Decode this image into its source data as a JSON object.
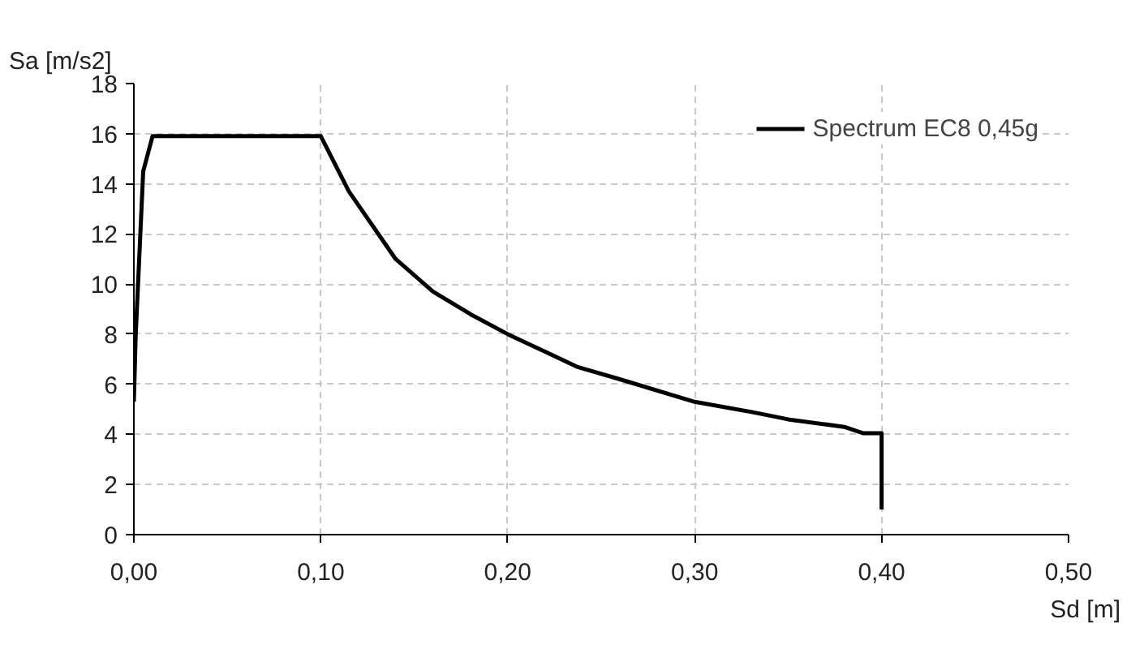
{
  "chart_data": {
    "type": "line",
    "xlabel": "Sd [m]",
    "ylabel": "Sa [m/s2]",
    "x": [
      0,
      0.001,
      0.005,
      0.01,
      0.1,
      0.115,
      0.14,
      0.16,
      0.18,
      0.2,
      0.22,
      0.237,
      0.26,
      0.3,
      0.33,
      0.35,
      0.38,
      0.39,
      0.4,
      0.4
    ],
    "series": [
      {
        "name": "Spectrum EC8 0,45g",
        "color": "#000000",
        "values": [
          5.3,
          8.0,
          14.5,
          15.9,
          15.9,
          13.7,
          11.0,
          9.7,
          8.8,
          8.0,
          7.3,
          6.7,
          6.2,
          5.3,
          4.9,
          4.6,
          4.3,
          4.05,
          4.05,
          1.0
        ]
      }
    ],
    "xlim": [
      0,
      0.5
    ],
    "ylim": [
      0,
      18
    ],
    "xticks": [
      {
        "value": 0,
        "label": "0,00"
      },
      {
        "value": 0.1,
        "label": "0,10"
      },
      {
        "value": 0.2,
        "label": "0,20"
      },
      {
        "value": 0.3,
        "label": "0,30"
      },
      {
        "value": 0.4,
        "label": "0,40"
      },
      {
        "value": 0.5,
        "label": "0,50"
      }
    ],
    "yticks": [
      0,
      2,
      4,
      6,
      8,
      10,
      12,
      14,
      16,
      18
    ],
    "grid": true,
    "legend": "top right",
    "marker": "none",
    "line_style": "solid"
  }
}
